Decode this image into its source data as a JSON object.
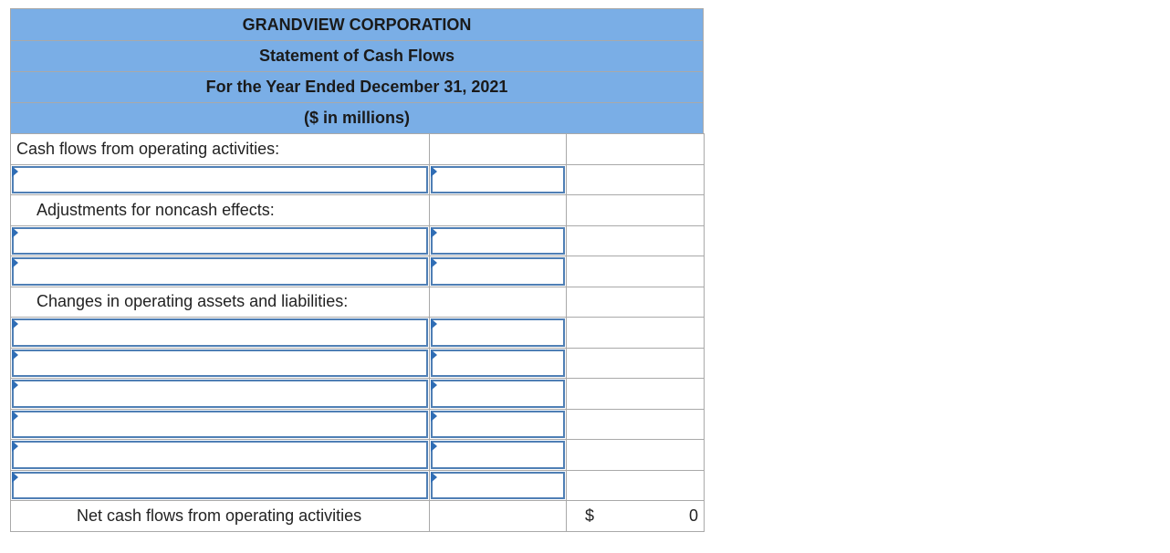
{
  "header": {
    "company": "GRANDVIEW CORPORATION",
    "statement": "Statement of Cash Flows",
    "period": "For the Year Ended December 31, 2021",
    "units": "($ in millions)"
  },
  "rows": {
    "operating_heading": "Cash flows from operating activities:",
    "adjustments_heading": "Adjustments for noncash effects:",
    "changes_heading": "Changes in operating assets and liabilities:",
    "net_label": "Net cash flows from operating activities",
    "currency_symbol": "$",
    "net_value": "0"
  },
  "colors": {
    "header_bg": "#7aaee6",
    "input_border": "#4f7fb5",
    "grid_border": "#a9a9a9"
  }
}
